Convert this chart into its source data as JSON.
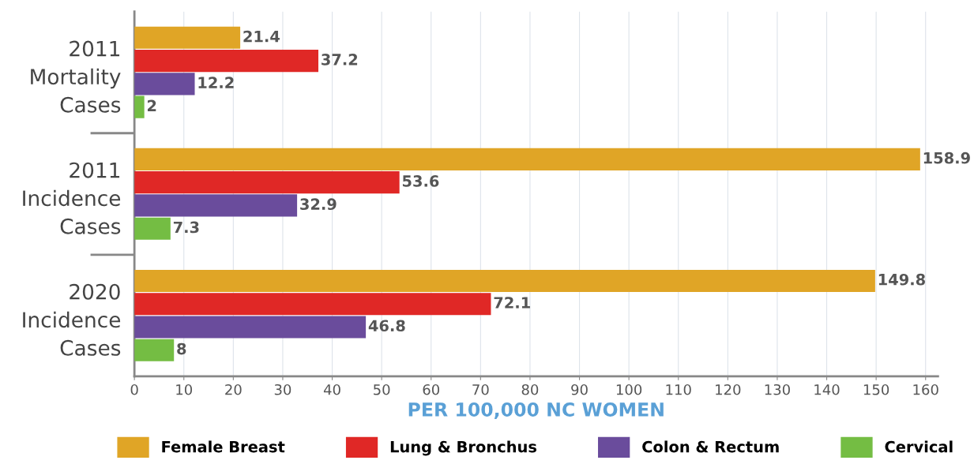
{
  "chart_data": {
    "type": "bar",
    "orientation": "horizontal",
    "categories": [
      "2011\nMortality\nCases",
      "2011\nIncidence\nCases",
      "2020\nIncidence\nCases"
    ],
    "series": [
      {
        "name": "Female Breast",
        "color": "#e0a526",
        "values": [
          21.4,
          158.9,
          149.8
        ]
      },
      {
        "name": "Lung & Bronchus",
        "color": "#e02826",
        "values": [
          37.2,
          53.6,
          72.1
        ]
      },
      {
        "name": "Colon & Rectum",
        "color": "#6a4c9c",
        "values": [
          12.2,
          32.9,
          46.8
        ]
      },
      {
        "name": "Cervical",
        "color": "#74bd43",
        "values": [
          2,
          7.3,
          8
        ]
      }
    ],
    "xlabel": "PER 100,000 NC WOMEN",
    "xlim": [
      0,
      162.5
    ],
    "xticks": [
      0,
      10,
      20,
      30,
      40,
      50,
      60,
      70,
      80,
      90,
      100,
      110,
      120,
      130,
      140,
      150,
      160
    ],
    "grid": "x",
    "legend": "bottom",
    "data_labels": true
  }
}
